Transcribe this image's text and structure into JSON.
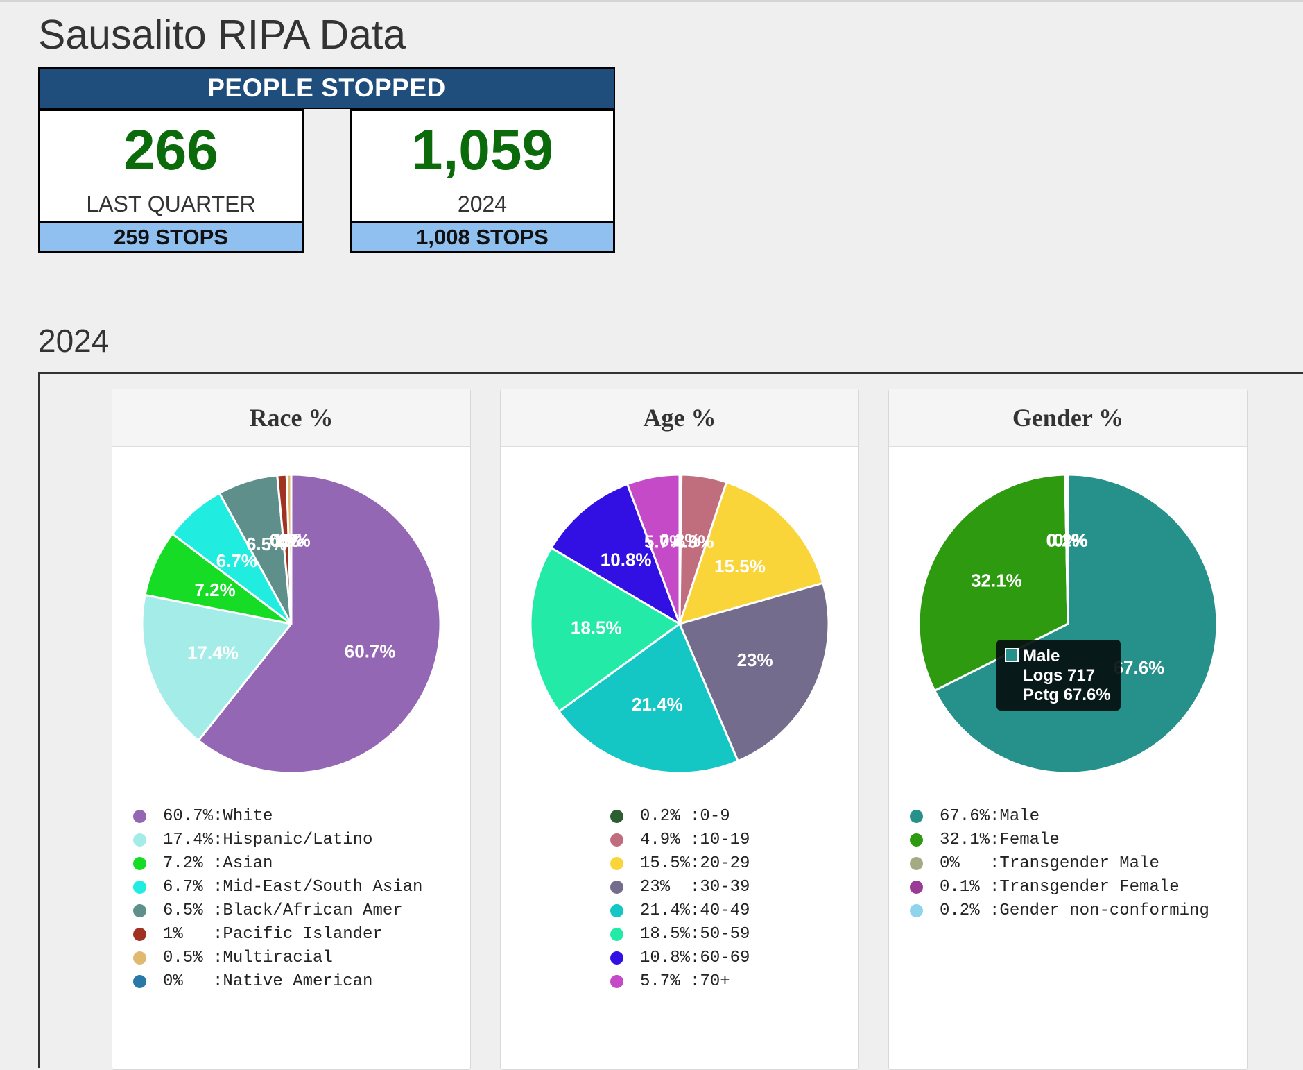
{
  "page_title": "Sausalito RIPA Data",
  "people_stopped": {
    "header": "PEOPLE STOPPED",
    "last_quarter": {
      "value": "266",
      "label": "LAST QUARTER",
      "stops": "259 STOPS"
    },
    "year": {
      "value": "1,059",
      "label": "2024",
      "stops": "1,008 STOPS"
    }
  },
  "section_title": "2024",
  "tooltip": {
    "series": "Male",
    "logs": "Logs 717",
    "pctg": "Pctg 67.6%"
  },
  "chart_data": [
    {
      "type": "pie",
      "title": "Race %",
      "categories": [
        "White",
        "Hispanic/Latino",
        "Asian",
        "Mid-East/South Asian",
        "Black/African Amer",
        "Pacific Islander",
        "Multiracial",
        "Native American"
      ],
      "values": [
        60.7,
        17.4,
        7.2,
        6.7,
        6.5,
        1,
        0.5,
        0
      ],
      "slice_labels": [
        "60.7%",
        "17.4%",
        "7.2%",
        "6.7%",
        "6.5%",
        "1%",
        "0.5%",
        "0%"
      ],
      "legend_entries": [
        "60.7%:White",
        "17.4%:Hispanic/Latino",
        "7.2% :Asian",
        "6.7% :Mid-East/South Asian",
        "6.5% :Black/African Amer",
        "1%   :Pacific Islander",
        "0.5% :Multiracial",
        "0%   :Native American"
      ],
      "colors": [
        "#9467b4",
        "#a4ece8",
        "#16dc26",
        "#20ecdf",
        "#5f8f8a",
        "#a03222",
        "#e0b870",
        "#2a78a8"
      ],
      "order": "clockwise from top"
    },
    {
      "type": "pie",
      "title": "Age %",
      "categories": [
        "0-9",
        "10-19",
        "20-29",
        "30-39",
        "40-49",
        "50-59",
        "60-69",
        "70+"
      ],
      "values": [
        0.2,
        4.9,
        15.5,
        23,
        21.4,
        18.5,
        10.8,
        5.7
      ],
      "slice_labels": [
        "0.2%",
        "4.9%",
        "15.5%",
        "23%",
        "21.4%",
        "18.5%",
        "10.8%",
        "5.7%"
      ],
      "legend_entries": [
        "0.2% :0-9",
        "4.9% :10-19",
        "15.5%:20-29",
        "23%  :30-39",
        "21.4%:40-49",
        "18.5%:50-59",
        "10.8%:60-69",
        "5.7% :70+"
      ],
      "colors": [
        "#2d5e32",
        "#c06e7e",
        "#fad53a",
        "#736c8c",
        "#14c6c4",
        "#24eaa8",
        "#3210e4",
        "#c44ac8"
      ],
      "order": "clockwise from top"
    },
    {
      "type": "pie",
      "title": "Gender %",
      "categories": [
        "Male",
        "Female",
        "Transgender Male",
        "Transgender Female",
        "Gender non-conforming"
      ],
      "values": [
        67.6,
        32.1,
        0,
        0.1,
        0.2
      ],
      "slice_labels": [
        "67.6%",
        "32.1%",
        "0%",
        "0.1%",
        "0.2%"
      ],
      "legend_entries": [
        "67.6%:Male",
        "32.1%:Female",
        "0%   :Transgender Male",
        "0.1% :Transgender Female",
        "0.2% :Gender non-conforming"
      ],
      "colors": [
        "#26908a",
        "#2e9a10",
        "#a4aa84",
        "#9a3c96",
        "#90d4ec"
      ],
      "order": "clockwise from top"
    }
  ]
}
